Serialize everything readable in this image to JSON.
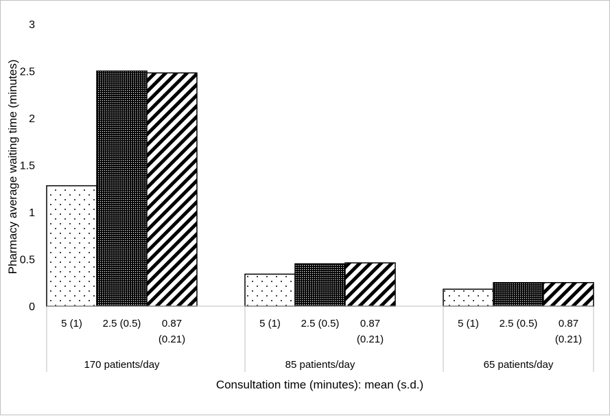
{
  "chart_data": {
    "type": "bar",
    "title": "",
    "ylabel": "Pharmacy average waiting time (minutes)",
    "xlabel": "Consultation time (minutes): mean (s.d.)",
    "ylim": [
      0,
      3
    ],
    "yticks": [
      "0",
      "0.5",
      "1",
      "1.5",
      "2",
      "2.5",
      "3"
    ],
    "grid": false,
    "legend": "none",
    "groups": [
      {
        "label": "170 patients/day",
        "bars": [
          {
            "label_line1": "5 (1)",
            "label_line2": "",
            "value": 1.28,
            "pattern": "dots"
          },
          {
            "label_line1": "2.5 (0.5)",
            "label_line2": "",
            "value": 2.5,
            "pattern": "grid"
          },
          {
            "label_line1": "0.87",
            "label_line2": "(0.21)",
            "value": 2.48,
            "pattern": "diag"
          }
        ]
      },
      {
        "label": "85 patients/day",
        "bars": [
          {
            "label_line1": "5 (1)",
            "label_line2": "",
            "value": 0.34,
            "pattern": "dots"
          },
          {
            "label_line1": "2.5 (0.5)",
            "label_line2": "",
            "value": 0.45,
            "pattern": "grid"
          },
          {
            "label_line1": "0.87",
            "label_line2": "(0.21)",
            "value": 0.46,
            "pattern": "diag"
          }
        ]
      },
      {
        "label": "65 patients/day",
        "bars": [
          {
            "label_line1": "5 (1)",
            "label_line2": "",
            "value": 0.18,
            "pattern": "dots"
          },
          {
            "label_line1": "2.5 (0.5)",
            "label_line2": "",
            "value": 0.25,
            "pattern": "grid"
          },
          {
            "label_line1": "0.87",
            "label_line2": "(0.21)",
            "value": 0.25,
            "pattern": "diag"
          }
        ]
      }
    ]
  }
}
